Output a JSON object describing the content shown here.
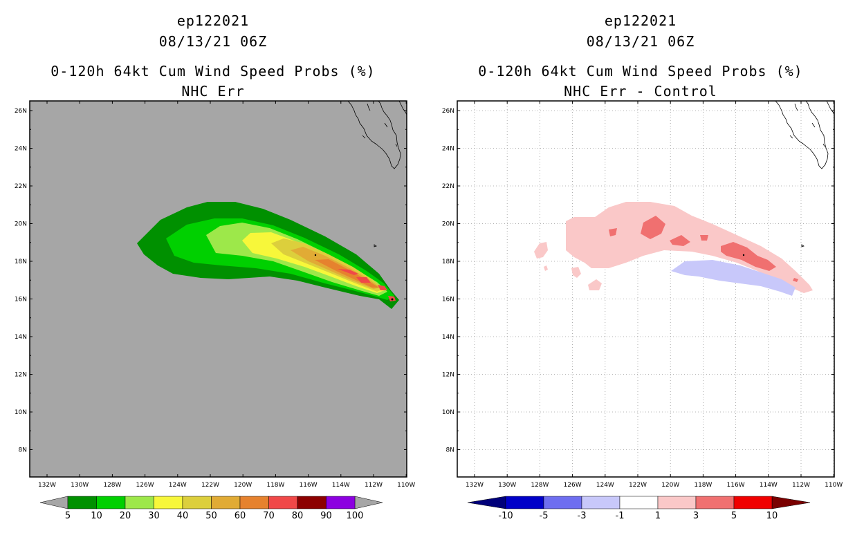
{
  "left_panel": {
    "storm_id": "ep122021",
    "datetime": "08/13/21 06Z",
    "product": "0-120h 64kt Cum Wind Speed Probs (%)",
    "subtitle": "NHC Err",
    "colorbar": {
      "labels": [
        "5",
        "10",
        "20",
        "30",
        "40",
        "50",
        "60",
        "70",
        "80",
        "90",
        "100"
      ],
      "colors": [
        "#009000",
        "#00d000",
        "#9de84a",
        "#f7f73a",
        "#dccf3c",
        "#e1ab35",
        "#e6822e",
        "#f04848",
        "#8c0000",
        "#8c00e0"
      ],
      "under_color": "#a6a6a6",
      "over_color": "#a6a6a6"
    },
    "background_color": "#a6a6a6"
  },
  "right_panel": {
    "storm_id": "ep122021",
    "datetime": "08/13/21 06Z",
    "product": "0-120h 64kt Cum Wind Speed Probs (%)",
    "subtitle": "NHC Err - Control",
    "colorbar": {
      "labels": [
        "-10",
        "-5",
        "-3",
        "-1",
        "1",
        "3",
        "5",
        "10"
      ],
      "colors": [
        "#0000c8",
        "#6e6ef0",
        "#c8c8fa",
        "#ffffff",
        "#fac8c8",
        "#f07070",
        "#f00000"
      ],
      "under_color": "#00007a",
      "over_color": "#7a0000"
    }
  },
  "axes": {
    "lat_labels": [
      "26N",
      "24N",
      "22N",
      "20N",
      "18N",
      "16N",
      "14N",
      "12N",
      "10N",
      "8N"
    ],
    "lon_labels": [
      "132W",
      "130W",
      "128W",
      "126W",
      "124W",
      "122W",
      "120W",
      "118W",
      "116W",
      "114W",
      "112W",
      "110W"
    ]
  },
  "colors": {
    "grid": "#9a9a9a",
    "coast": "#000000"
  }
}
